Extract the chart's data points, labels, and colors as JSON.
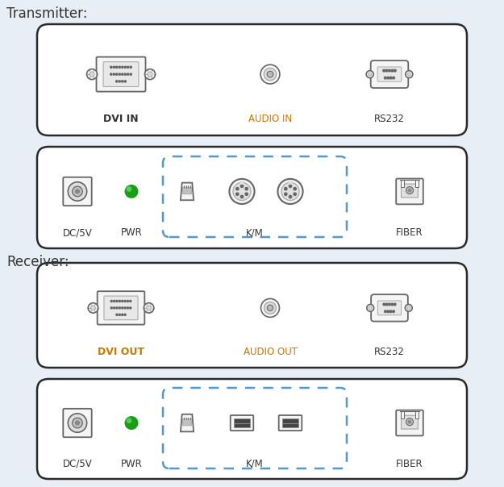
{
  "bg_color": "#e8eef5",
  "box_facecolor": "#ffffff",
  "box_edgecolor": "#2a2a2a",
  "dashed_color": "#5599cc",
  "text_color": "#333333",
  "orange_color": "#cc7700",
  "green_color": "#22aa22",
  "transmitter_label": "Transmitter:",
  "receiver_label": "Receiver:",
  "dvi_in_label": "DVI IN",
  "dvi_out_label": "DVI OUT",
  "audio_in_label": "AUDIO IN",
  "audio_out_label": "AUDIO OUT",
  "rs232_label": "RS232",
  "dc5v_label": "DC/5V",
  "pwr_label": "PWR",
  "km_label": "K/M",
  "fiber_label": "FIBER",
  "icon_color": "#666666",
  "icon_face": "#f5f5f5",
  "icon_inner": "#dddddd"
}
